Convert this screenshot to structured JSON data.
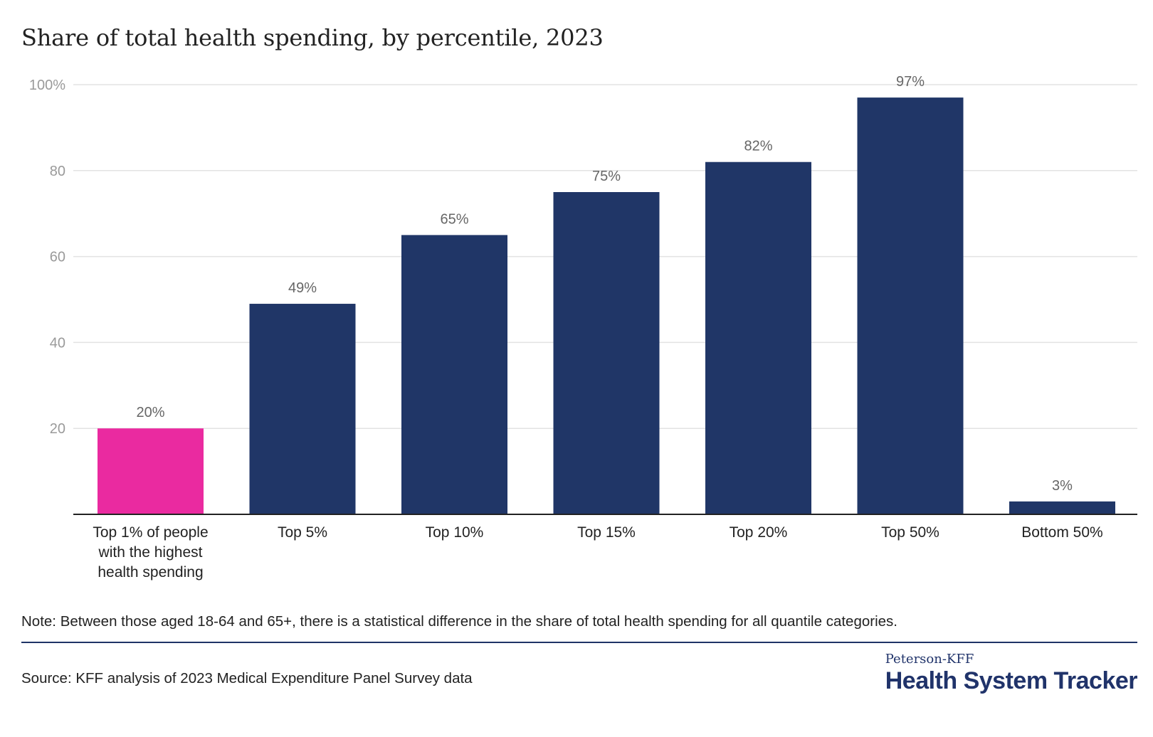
{
  "chart_data": {
    "type": "bar",
    "title": "Share of total health spending, by percentile, 2023",
    "categories": [
      "Top 1% of people with the highest health spending",
      "Top 5%",
      "Top 10%",
      "Top 15%",
      "Top 20%",
      "Top 50%",
      "Bottom 50%"
    ],
    "category_lines": [
      [
        "Top 1% of people",
        "with the highest",
        "health spending"
      ],
      [
        "Top 5%"
      ],
      [
        "Top 10%"
      ],
      [
        "Top 15%"
      ],
      [
        "Top 20%"
      ],
      [
        "Top 50%"
      ],
      [
        "Bottom 50%"
      ]
    ],
    "values": [
      20,
      49,
      65,
      75,
      82,
      97,
      3
    ],
    "data_labels": [
      "20%",
      "49%",
      "65%",
      "75%",
      "82%",
      "97%",
      "3%"
    ],
    "bar_colors": [
      "#ea2aa0",
      "#203667",
      "#203667",
      "#203667",
      "#203667",
      "#203667",
      "#203667"
    ],
    "ylim": [
      0,
      100
    ],
    "yticks": [
      20,
      40,
      60,
      80,
      100
    ],
    "ytick_labels": [
      "20",
      "40",
      "60",
      "80",
      "100%"
    ],
    "xlabel": "",
    "ylabel": "",
    "grid": true,
    "legend": "none"
  },
  "note": "Note: Between those aged 18-64 and 65+, there is a statistical difference in the share of total health spending for all quantile categories.",
  "source": "Source: KFF analysis of 2023 Medical Expenditure Panel Survey data",
  "brand": {
    "top": "Peterson-KFF",
    "main": "Health System Tracker"
  },
  "colors": {
    "highlight": "#ea2aa0",
    "bar": "#203667",
    "gridline": "#e3e3e3",
    "axis": "#222222",
    "brand": "#20336a"
  }
}
